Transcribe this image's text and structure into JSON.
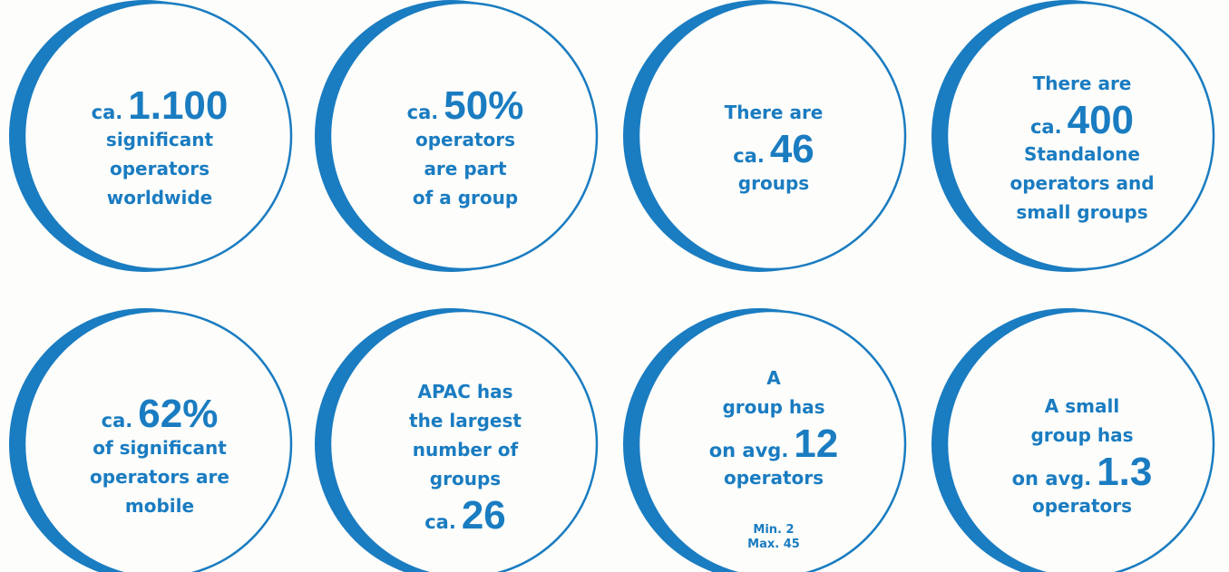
{
  "circles": [
    {
      "lines": [
        {
          "prefix": "ca.",
          "number": "1.100"
        },
        "significant",
        "operators",
        "worldwide"
      ]
    },
    {
      "lines": [
        {
          "prefix": "ca.",
          "number": "50%"
        },
        "operators",
        "are part",
        "of a group"
      ]
    },
    {
      "lines": [
        "There are",
        {
          "prefix": "ca.",
          "number": "46"
        },
        "groups"
      ]
    },
    {
      "lines": [
        "There are",
        {
          "prefix": "ca.",
          "number": "400"
        },
        "Standalone",
        "operators and",
        "small groups"
      ]
    },
    {
      "lines": [
        {
          "prefix": "ca.",
          "number": "62%"
        },
        "of significant",
        "operators are",
        "mobile"
      ]
    },
    {
      "lines": [
        "APAC has",
        "the largest",
        "number of",
        "groups",
        {
          "prefix": "ca.",
          "number": "26"
        }
      ]
    },
    {
      "lines": [
        "A",
        "group has",
        {
          "prefix": "on avg.",
          "number": "12"
        },
        "operators"
      ],
      "note": [
        "Min. 2",
        "Max. 45"
      ]
    },
    {
      "lines": [
        "A small",
        "group has",
        {
          "prefix": "on avg.",
          "number": "1.3"
        },
        "operators"
      ]
    }
  ]
}
